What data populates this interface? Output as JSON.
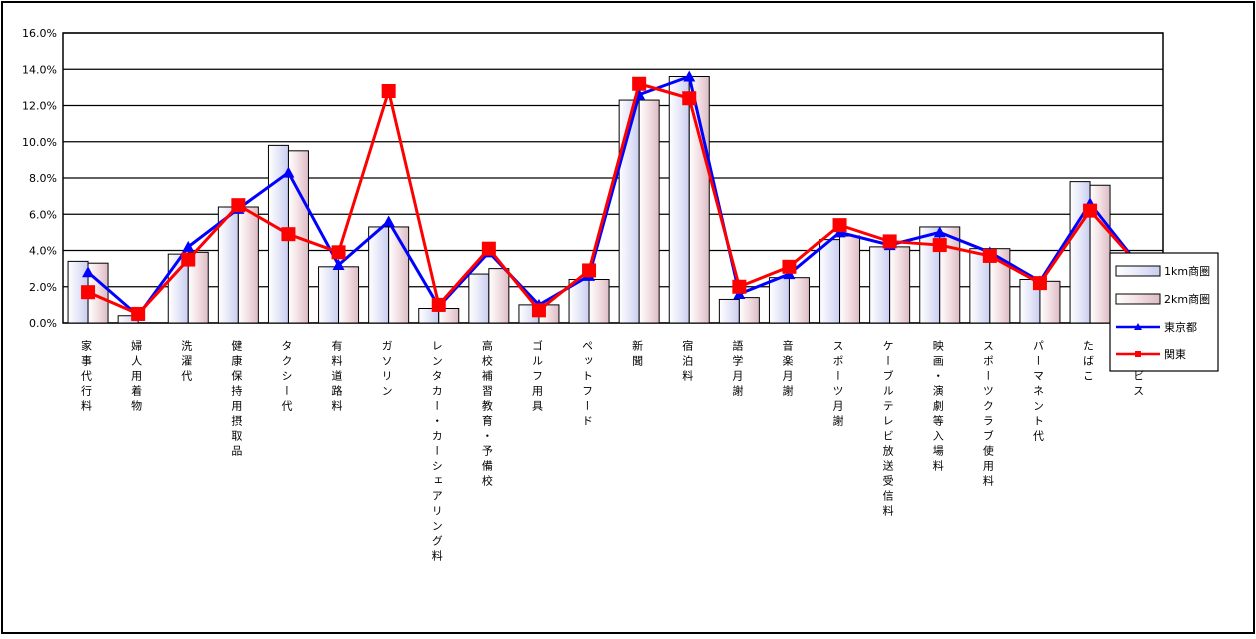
{
  "chart_data": {
    "type": "bar",
    "y_axis": {
      "min": 0,
      "max": 16,
      "step": 2,
      "tick_format": "percent_1dp"
    },
    "categories": [
      "家事代行料",
      "婦人用着物",
      "洗濯代",
      "健康保持用摂取品",
      "タクシー代",
      "有料道路料",
      "ガソリン",
      "レンタカー・カーシェアリング料",
      "高校補習教育・予備校",
      "ゴルフ用具",
      "ペットフード",
      "新聞",
      "宿泊料",
      "語学月謝",
      "音楽月謝",
      "スポーツ月謝",
      "ケーブルテレビ放送受信料",
      "映画・演劇等入場料",
      "スポーツクラブ使用料",
      "パーマネント代",
      "たばこ",
      "サービス"
    ],
    "series": [
      {
        "name": "1km商圏",
        "kind": "bar",
        "color": "#e6e8f8",
        "values": [
          3.4,
          0.4,
          3.8,
          6.4,
          9.8,
          3.1,
          5.3,
          0.8,
          2.7,
          1.0,
          2.4,
          12.3,
          13.6,
          1.3,
          2.5,
          4.6,
          4.2,
          5.3,
          4.1,
          2.4,
          7.8,
          null
        ]
      },
      {
        "name": "2km商圏",
        "kind": "bar",
        "color": "#f2dfe3",
        "values": [
          3.3,
          0.0,
          3.9,
          6.4,
          9.5,
          3.1,
          5.3,
          0.8,
          3.0,
          1.0,
          2.4,
          12.3,
          13.6,
          1.4,
          2.5,
          4.8,
          4.2,
          5.3,
          4.1,
          2.3,
          7.6,
          null
        ]
      },
      {
        "name": "東京都",
        "kind": "line",
        "color": "#0000ff",
        "marker": "triangle",
        "values": [
          2.8,
          0.4,
          4.2,
          6.3,
          8.3,
          3.2,
          5.6,
          0.9,
          3.9,
          1.0,
          2.6,
          12.6,
          13.6,
          1.6,
          2.7,
          5.0,
          4.3,
          5.0,
          3.9,
          2.3,
          6.6,
          3.1
        ]
      },
      {
        "name": "関東",
        "kind": "line",
        "color": "#ff0000",
        "marker": "square",
        "values": [
          1.7,
          0.5,
          3.5,
          6.5,
          4.9,
          3.9,
          12.8,
          1.0,
          4.1,
          0.7,
          2.9,
          13.2,
          12.4,
          2.0,
          3.1,
          5.4,
          4.5,
          4.3,
          3.7,
          2.2,
          6.2,
          3.1
        ]
      }
    ],
    "legend": {
      "position": "right"
    },
    "grid": true
  }
}
